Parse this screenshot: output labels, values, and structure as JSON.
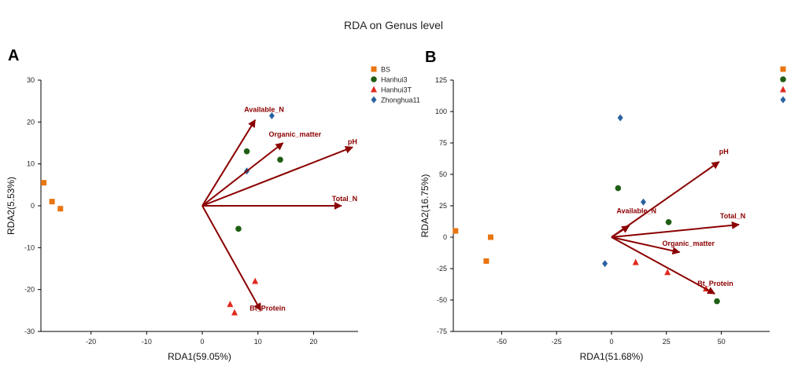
{
  "title": "RDA on Genus level",
  "colors": {
    "BS": "#e87511",
    "Hanhui3": "#1f5f14",
    "Hanhui3T": "#e02a1f",
    "Zhonghua11": "#2a62a0",
    "arrow": "#8b0000",
    "axis": "#000000"
  },
  "chart_data": [
    {
      "panel": "A",
      "type": "scatter",
      "xlabel": "RDA1(59.05%)",
      "ylabel": "RDA2(5.53%)",
      "xlim": [
        -29,
        28
      ],
      "ylim": [
        -30,
        30
      ],
      "xticks": [
        -20,
        -10,
        0,
        10,
        20
      ],
      "yticks": [
        -30,
        -20,
        -10,
        0,
        10,
        20,
        30
      ],
      "legend": {
        "position": "top-right",
        "entries": [
          {
            "name": "BS",
            "marker": "square"
          },
          {
            "name": "Hanhui3",
            "marker": "circle"
          },
          {
            "name": "Hanhui3T",
            "marker": "triangle"
          },
          {
            "name": "Zhonghua11",
            "marker": "diamond"
          }
        ]
      },
      "series": [
        {
          "name": "BS",
          "marker": "square",
          "points": [
            [
              -28.5,
              5.5
            ],
            [
              -27,
              1
            ],
            [
              -25.5,
              -0.7
            ]
          ]
        },
        {
          "name": "Hanhui3",
          "marker": "circle",
          "points": [
            [
              8,
              13
            ],
            [
              14,
              11
            ],
            [
              6.5,
              -5.5
            ]
          ]
        },
        {
          "name": "Hanhui3T",
          "marker": "triangle",
          "points": [
            [
              9.5,
              -18
            ],
            [
              5,
              -23.5
            ],
            [
              5.8,
              -25.5
            ]
          ]
        },
        {
          "name": "Zhonghua11",
          "marker": "diamond",
          "points": [
            [
              12.5,
              21.5
            ],
            [
              8,
              8.3
            ]
          ]
        }
      ],
      "vectors": [
        {
          "name": "Available_N",
          "x": 9.5,
          "y": 20.5
        },
        {
          "name": "Organic_matter",
          "x": 14.5,
          "y": 15
        },
        {
          "name": "pH",
          "x": 27,
          "y": 14
        },
        {
          "name": "Total_N",
          "x": 25,
          "y": 0
        },
        {
          "name": "Bt_Protein",
          "x": 10.5,
          "y": -25
        }
      ]
    },
    {
      "panel": "B",
      "type": "scatter",
      "xlabel": "RDA1(51.68%)",
      "ylabel": "RDA2(16.75%)",
      "xlim": [
        -72,
        72
      ],
      "ylim": [
        -75,
        125
      ],
      "xticks": [
        -50,
        -25,
        0,
        25,
        50
      ],
      "yticks": [
        -75,
        -50,
        -25,
        0,
        25,
        50,
        75,
        100,
        125
      ],
      "legend": {
        "position": "top-right"
      },
      "series": [
        {
          "name": "BS",
          "marker": "square",
          "points": [
            [
              -71,
              5
            ],
            [
              -55,
              0
            ],
            [
              -57,
              -19
            ]
          ]
        },
        {
          "name": "Hanhui3",
          "marker": "circle",
          "points": [
            [
              3,
              39
            ],
            [
              26,
              12
            ],
            [
              48,
              -51
            ]
          ]
        },
        {
          "name": "Hanhui3T",
          "marker": "triangle",
          "points": [
            [
              11,
              -20
            ],
            [
              25.5,
              -28
            ],
            [
              43,
              -41
            ]
          ]
        },
        {
          "name": "Zhonghua11",
          "marker": "diamond",
          "points": [
            [
              4,
              95
            ],
            [
              14.5,
              28
            ],
            [
              -3,
              -21
            ]
          ]
        }
      ],
      "vectors": [
        {
          "name": "pH",
          "x": 49,
          "y": 60
        },
        {
          "name": "Available_N",
          "x": 8,
          "y": 9
        },
        {
          "name": "Total_N",
          "x": 58,
          "y": 10
        },
        {
          "name": "Organic_matter",
          "x": 31,
          "y": -12
        },
        {
          "name": "Bt_Protein",
          "x": 47,
          "y": -45
        }
      ]
    }
  ]
}
